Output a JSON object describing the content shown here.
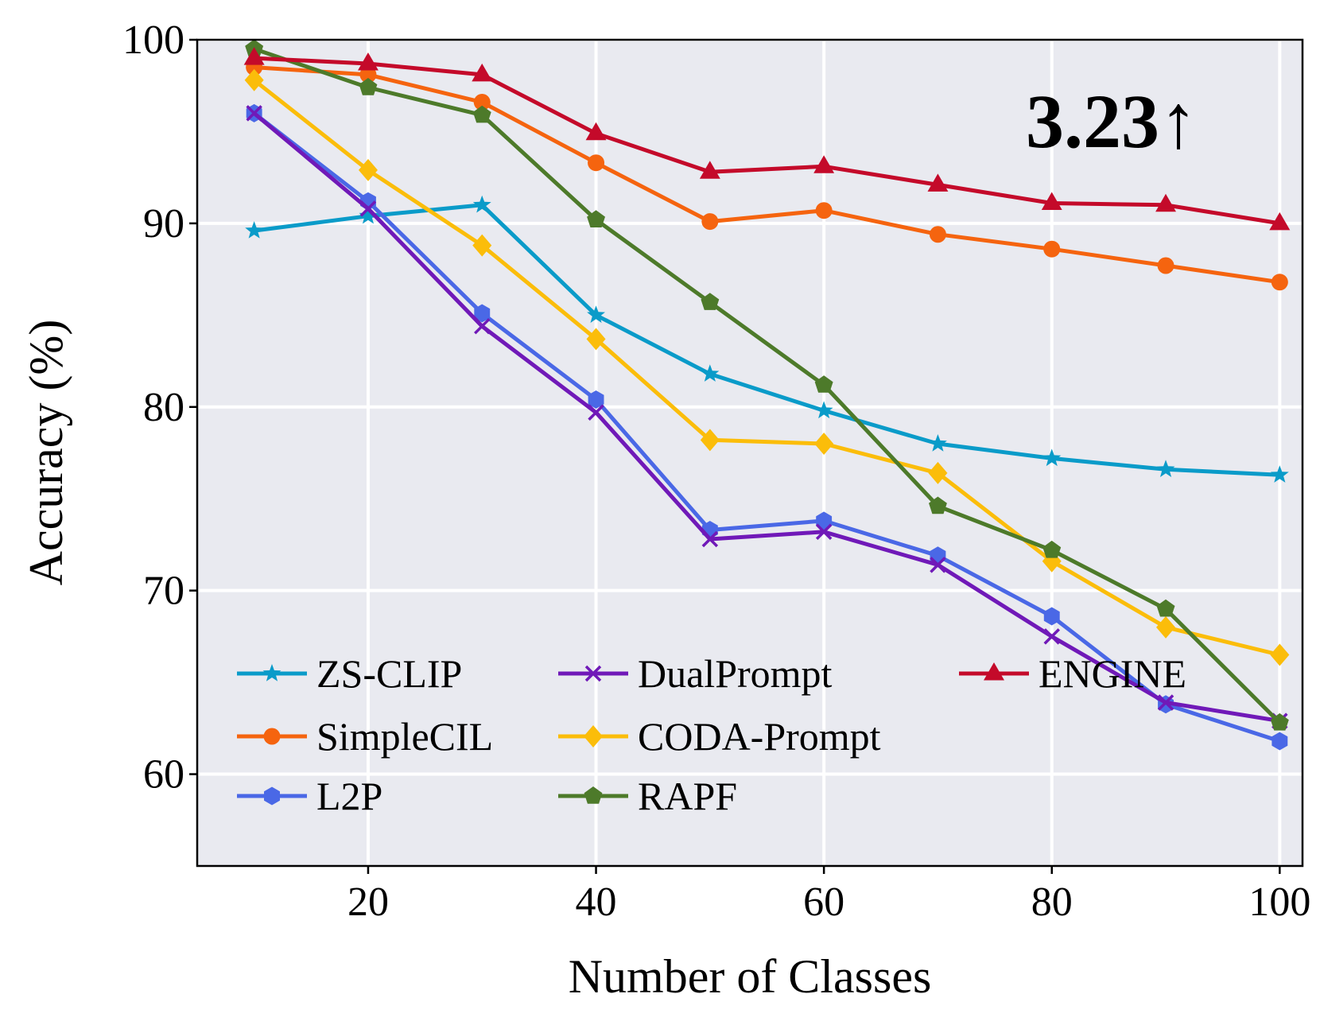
{
  "chart_data": {
    "type": "line",
    "title": "",
    "xlabel": "Number of Classes",
    "ylabel": "Accuracy (%)",
    "xlim": [
      5,
      102
    ],
    "ylim": [
      55,
      100
    ],
    "xticks": [
      20,
      40,
      60,
      80,
      100
    ],
    "yticks": [
      60,
      70,
      80,
      90,
      100
    ],
    "grid": true,
    "legend_position": "lower-left",
    "annotation": "3.23↑",
    "x": [
      10,
      20,
      30,
      40,
      50,
      60,
      70,
      80,
      90,
      100
    ],
    "series": [
      {
        "name": "ZS-CLIP",
        "color": "#0a9bc9",
        "marker": "star",
        "values": [
          89.6,
          90.4,
          91.0,
          85.0,
          81.8,
          79.8,
          78.0,
          77.2,
          76.6,
          76.3
        ]
      },
      {
        "name": "SimpleCIL",
        "color": "#f5640f",
        "marker": "circle",
        "values": [
          98.5,
          98.1,
          96.6,
          93.3,
          90.1,
          90.7,
          89.4,
          88.6,
          87.7,
          86.8
        ]
      },
      {
        "name": "L2P",
        "color": "#4a68e6",
        "marker": "hexagon",
        "values": [
          96.0,
          91.2,
          85.1,
          80.4,
          73.3,
          73.8,
          71.9,
          68.6,
          63.8,
          61.8
        ]
      },
      {
        "name": "DualPrompt",
        "color": "#7019b8",
        "marker": "x",
        "values": [
          96.0,
          90.8,
          84.4,
          79.7,
          72.8,
          73.2,
          71.4,
          67.5,
          63.9,
          62.9
        ]
      },
      {
        "name": "CODA-Prompt",
        "color": "#fbbd0a",
        "marker": "diamond",
        "values": [
          97.8,
          92.9,
          88.8,
          83.7,
          78.2,
          78.0,
          76.4,
          71.6,
          68.0,
          66.5
        ]
      },
      {
        "name": "RAPF",
        "color": "#4d7a2a",
        "marker": "pentagon",
        "values": [
          99.5,
          97.4,
          95.9,
          90.2,
          85.7,
          81.2,
          74.6,
          72.2,
          69.0,
          62.8
        ]
      },
      {
        "name": "ENGINE",
        "color": "#c40a2a",
        "marker": "triangle",
        "values": [
          99.0,
          98.7,
          98.1,
          94.9,
          92.8,
          93.1,
          92.1,
          91.1,
          91.0,
          90.0
        ]
      }
    ]
  }
}
